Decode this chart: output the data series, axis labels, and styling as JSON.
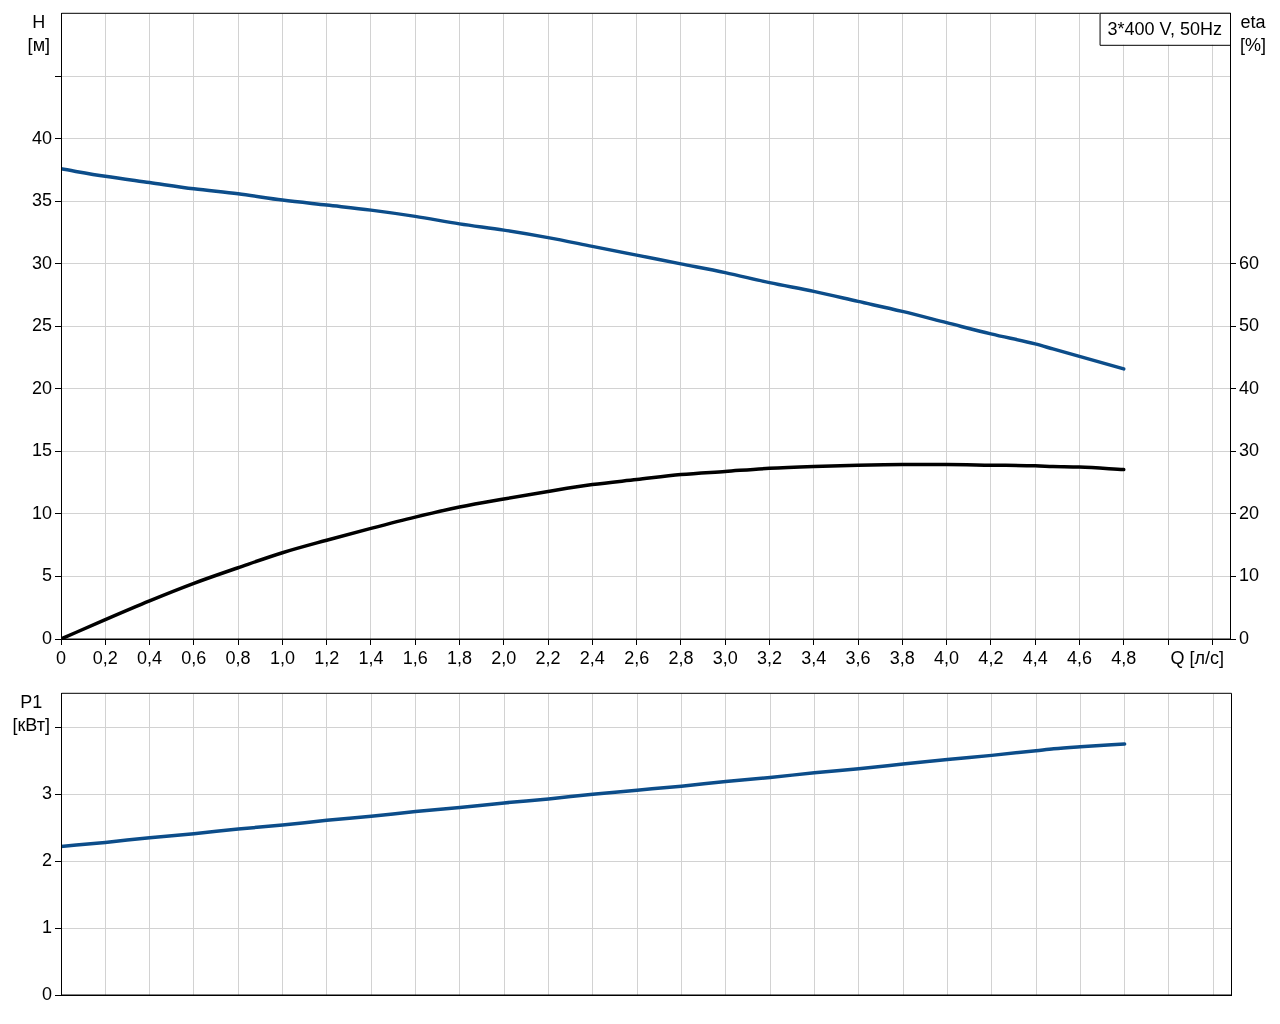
{
  "chart_data": [
    {
      "type": "line",
      "title": "3*400 V, 50Hz",
      "xlabel": "Q [л/с]",
      "ylabel": "H [м]",
      "y2label": "eta [%]",
      "xlim": [
        0,
        5.28
      ],
      "xticks": [
        0,
        {
          "value": 0.2,
          "label": "0,2"
        },
        {
          "value": 0.4,
          "label": "0,4"
        },
        {
          "value": 0.6,
          "label": "0,6"
        },
        {
          "value": 0.8,
          "label": "0,8"
        },
        {
          "value": 1,
          "label": "1,0"
        },
        {
          "value": 1.2,
          "label": "1,2"
        },
        {
          "value": 1.4,
          "label": "1,4"
        },
        {
          "value": 1.6,
          "label": "1,6"
        },
        {
          "value": 1.8,
          "label": "1,8"
        },
        {
          "value": 2,
          "label": "2,0"
        },
        {
          "value": 2.2,
          "label": "2,2"
        },
        {
          "value": 2.4,
          "label": "2,4"
        },
        {
          "value": 2.6,
          "label": "2,6"
        },
        {
          "value": 2.8,
          "label": "2,8"
        },
        {
          "value": 3,
          "label": "3,0"
        },
        {
          "value": 3.2,
          "label": "3,2"
        },
        {
          "value": 3.4,
          "label": "3,4"
        },
        {
          "value": 3.6,
          "label": "3,6"
        },
        {
          "value": 3.8,
          "label": "3,8"
        },
        {
          "value": 4,
          "label": "4,0"
        },
        {
          "value": 4.2,
          "label": "4,2"
        },
        {
          "value": 4.4,
          "label": "4,4"
        },
        {
          "value": 4.6,
          "label": "4,6"
        },
        {
          "value": 4.8,
          "label": "4,8"
        },
        {
          "value": 5,
          "label": null
        },
        {
          "value": 5.2,
          "label": null
        }
      ],
      "ylim": [
        0,
        50
      ],
      "yticks": [
        0,
        5,
        10,
        15,
        20,
        25,
        30,
        35,
        40,
        {
          "value": 45,
          "label": null
        }
      ],
      "y2lim": [
        0,
        100
      ],
      "y2ticks": [
        0,
        10,
        20,
        30,
        40,
        50,
        60
      ],
      "grid": true,
      "marker": "none",
      "line_style": "solid",
      "x": [
        0,
        0.2,
        0.4,
        0.6,
        0.8,
        1,
        1.2,
        1.4,
        1.6,
        1.8,
        2,
        2.2,
        2.4,
        2.6,
        2.8,
        3,
        3.2,
        3.4,
        3.6,
        3.8,
        4,
        4.2,
        4.4,
        4.48,
        4.6,
        4.8
      ],
      "series": [
        {
          "color": "#0c4d8a",
          "values": [
            37.6,
            37.0,
            36.5,
            36.0,
            35.6,
            35.1,
            34.7,
            34.3,
            33.8,
            33.2,
            32.7,
            32.1,
            31.4,
            30.7,
            30.0,
            29.3,
            28.5,
            27.8,
            27.0,
            26.2,
            25.3,
            24.4,
            23.6,
            23.2,
            22.6,
            21.6
          ]
        },
        {
          "color": "#000000",
          "axis": "y2",
          "values": [
            0,
            3.1,
            6.1,
            8.9,
            11.4,
            13.8,
            15.8,
            17.7,
            19.5,
            21.1,
            22.4,
            23.6,
            24.7,
            25.5,
            26.3,
            26.8,
            27.3,
            27.6,
            27.8,
            27.9,
            27.9,
            27.8,
            27.7,
            27.6,
            27.5,
            27.1
          ]
        }
      ]
    },
    {
      "type": "line",
      "ylabel": "P1 [кВт]",
      "xlim": [
        0,
        5.28
      ],
      "xticks": [
        0,
        0.2,
        0.4,
        0.6,
        0.8,
        1,
        1.2,
        1.4,
        1.6,
        1.8,
        2,
        2.2,
        2.4,
        2.6,
        2.8,
        3,
        3.2,
        3.4,
        3.6,
        3.8,
        4,
        4.2,
        4.4,
        4.6,
        4.8,
        5,
        5.2
      ],
      "ylim": [
        0,
        4.5
      ],
      "yticks": [
        0,
        1,
        2,
        3,
        {
          "value": 4,
          "label": null
        }
      ],
      "tick_labels": "y",
      "grid": true,
      "marker": "none",
      "line_style": "solid",
      "x": [
        0,
        0.2,
        0.4,
        0.6,
        0.8,
        1,
        1.2,
        1.4,
        1.6,
        1.8,
        2,
        2.2,
        2.4,
        2.6,
        2.8,
        3,
        3.2,
        3.4,
        3.6,
        3.8,
        4,
        4.2,
        4.4,
        4.48,
        4.6,
        4.8
      ],
      "series": [
        {
          "color": "#0c4d8a",
          "values": [
            2.22,
            2.28,
            2.35,
            2.41,
            2.48,
            2.54,
            2.61,
            2.67,
            2.74,
            2.8,
            2.87,
            2.93,
            3.0,
            3.06,
            3.12,
            3.19,
            3.25,
            3.32,
            3.38,
            3.45,
            3.52,
            3.58,
            3.65,
            3.68,
            3.71,
            3.75
          ]
        }
      ]
    }
  ]
}
